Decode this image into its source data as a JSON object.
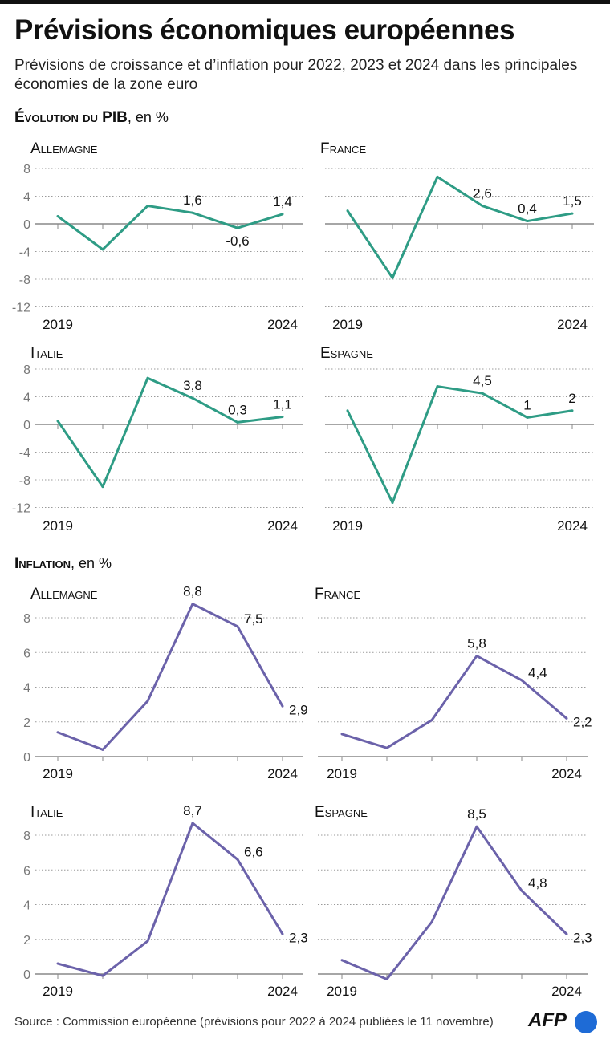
{
  "title": "Prévisions économiques européennes",
  "subtitle": "Prévisions de croissance et d’inflation pour 2022, 2023 et 2024 dans les principales économies de la zone euro",
  "sections": {
    "gdp": {
      "bold": "Évolution du PIB",
      "rest": ", en %"
    },
    "inflation": {
      "bold": "Inflation",
      "rest": ", en %"
    }
  },
  "source": "Source : Commission européenne (prévisions pour 2022 à 2024 publiées le 11 novembre)",
  "logo": "AFP",
  "colors": {
    "gdp": "#2e9c85",
    "inflation": "#6b62aa",
    "grid": "#9a9a9a",
    "axis": "#888888"
  },
  "chart_data": [
    {
      "type": "line",
      "group": "gdp",
      "title": "Allemagne",
      "x": [
        2019,
        2020,
        2021,
        2022,
        2023,
        2024
      ],
      "values": [
        1.1,
        -3.7,
        2.6,
        1.6,
        -0.6,
        1.4
      ],
      "labels": [
        "",
        "",
        "",
        "1,6",
        "-0,6",
        "1,4"
      ],
      "ylim": [
        -12,
        8
      ],
      "yticks": [
        "8",
        "4",
        "0",
        "-4",
        "-8",
        "-12"
      ],
      "xtick_labels": [
        "2019",
        "2024"
      ],
      "grid": true
    },
    {
      "type": "line",
      "group": "gdp",
      "title": "France",
      "x": [
        2019,
        2020,
        2021,
        2022,
        2023,
        2024
      ],
      "values": [
        1.9,
        -7.8,
        6.8,
        2.6,
        0.4,
        1.5
      ],
      "labels": [
        "",
        "",
        "",
        "2,6",
        "0,4",
        "1,5"
      ],
      "ylim": [
        -12,
        8
      ],
      "xtick_labels": [
        "2019",
        "2024"
      ],
      "grid": true
    },
    {
      "type": "line",
      "group": "gdp",
      "title": "Italie",
      "x": [
        2019,
        2020,
        2021,
        2022,
        2023,
        2024
      ],
      "values": [
        0.5,
        -9.0,
        6.7,
        3.8,
        0.3,
        1.1
      ],
      "labels": [
        "",
        "",
        "",
        "3,8",
        "0,3",
        "1,1"
      ],
      "ylim": [
        -12,
        8
      ],
      "yticks": [
        "8",
        "4",
        "0",
        "-4",
        "-8",
        "-12"
      ],
      "xtick_labels": [
        "2019",
        "2024"
      ],
      "grid": true
    },
    {
      "type": "line",
      "group": "gdp",
      "title": "Espagne",
      "x": [
        2019,
        2020,
        2021,
        2022,
        2023,
        2024
      ],
      "values": [
        2.0,
        -11.3,
        5.5,
        4.5,
        1,
        2
      ],
      "labels": [
        "",
        "",
        "",
        "4,5",
        "1",
        "2"
      ],
      "ylim": [
        -12,
        8
      ],
      "xtick_labels": [
        "2019",
        "2024"
      ],
      "grid": true
    },
    {
      "type": "line",
      "group": "inflation",
      "title": "Allemagne",
      "x": [
        2019,
        2020,
        2021,
        2022,
        2023,
        2024
      ],
      "values": [
        1.4,
        0.4,
        3.2,
        8.8,
        7.5,
        2.9
      ],
      "labels": [
        "",
        "",
        "",
        "8,8",
        "7,5",
        "2,9"
      ],
      "ylim": [
        0,
        8
      ],
      "yticks": [
        "8",
        "6",
        "4",
        "2",
        "0"
      ],
      "xtick_labels": [
        "2019",
        "2024"
      ],
      "grid": true
    },
    {
      "type": "line",
      "group": "inflation",
      "title": "France",
      "x": [
        2019,
        2020,
        2021,
        2022,
        2023,
        2024
      ],
      "values": [
        1.3,
        0.5,
        2.1,
        5.8,
        4.4,
        2.2
      ],
      "labels": [
        "",
        "",
        "",
        "5,8",
        "4,4",
        "2,2"
      ],
      "ylim": [
        0,
        8
      ],
      "xtick_labels": [
        "2019",
        "2024"
      ],
      "grid": true
    },
    {
      "type": "line",
      "group": "inflation",
      "title": "Italie",
      "x": [
        2019,
        2020,
        2021,
        2022,
        2023,
        2024
      ],
      "values": [
        0.6,
        -0.1,
        1.9,
        8.7,
        6.6,
        2.3
      ],
      "labels": [
        "",
        "",
        "",
        "8,7",
        "6,6",
        "2,3"
      ],
      "ylim": [
        0,
        8
      ],
      "yticks": [
        "8",
        "6",
        "4",
        "2",
        "0"
      ],
      "xtick_labels": [
        "2019",
        "2024"
      ],
      "grid": true
    },
    {
      "type": "line",
      "group": "inflation",
      "title": "Espagne",
      "x": [
        2019,
        2020,
        2021,
        2022,
        2023,
        2024
      ],
      "values": [
        0.8,
        -0.3,
        3.0,
        8.5,
        4.8,
        2.3
      ],
      "labels": [
        "",
        "",
        "",
        "8,5",
        "4,8",
        "2,3"
      ],
      "ylim": [
        0,
        8
      ],
      "xtick_labels": [
        "2019",
        "2024"
      ],
      "grid": true
    }
  ]
}
